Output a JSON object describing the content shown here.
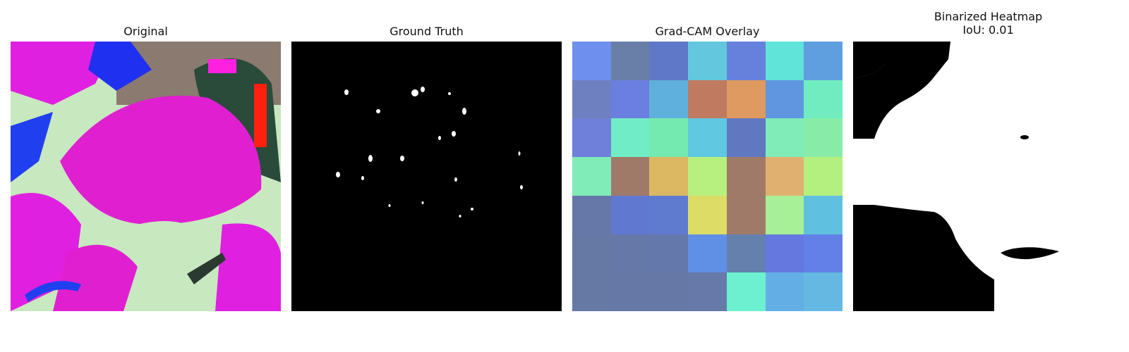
{
  "panels": {
    "original": {
      "title": "Original"
    },
    "ground_truth": {
      "title": "Ground Truth"
    },
    "gradcam": {
      "title": "Grad-CAM Overlay",
      "grid": [
        [
          "#6f8fee",
          "#6a7fa8",
          "#5f78c8",
          "#63c8de",
          "#6581dc",
          "#60e3d8",
          "#5f9fe0"
        ],
        [
          "#6f80c0",
          "#6a7fe0",
          "#5fb0dd",
          "#c07a60",
          "#de9a60",
          "#6096e0",
          "#70ecc0"
        ],
        [
          "#6f80db",
          "#70ecc6",
          "#75eab0",
          "#60c8e0",
          "#6078c0",
          "#80ecb8",
          "#88eca8"
        ],
        [
          "#80ecb8",
          "#a07a68",
          "#dcb862",
          "#b8f080",
          "#a07a68",
          "#e0b070",
          "#b4f080"
        ],
        [
          "#6678a8",
          "#6078d0",
          "#5f7bd0",
          "#dcdc66",
          "#a07a68",
          "#a8f098",
          "#60c0e0"
        ],
        [
          "#6678a4",
          "#6678a8",
          "#6478ac",
          "#6090e6",
          "#6480ac",
          "#6478e0",
          "#6280e8"
        ],
        [
          "#6678a4",
          "#6678a6",
          "#6678a6",
          "#6679a8",
          "#6cf0d0",
          "#64aee6",
          "#64b8e2"
        ]
      ]
    },
    "binarized": {
      "title": "Binarized Heatmap",
      "iou_text": "IoU: 0.01"
    }
  }
}
